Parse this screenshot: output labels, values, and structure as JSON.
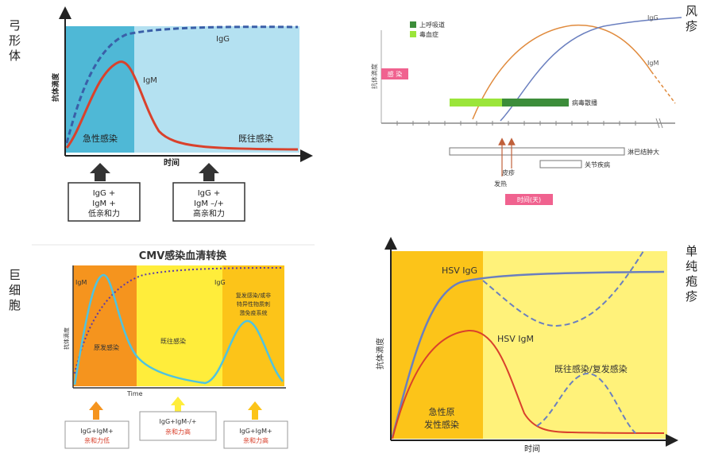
{
  "side_labels": {
    "toxo": "弓形体",
    "rubella": "风疹",
    "cmv": "巨细胞",
    "hsv": "单纯疱疹"
  },
  "toxo": {
    "y_axis": "抗体滴度",
    "x_axis": "时间",
    "igg": "IgG",
    "igm": "IgM",
    "acute": "急性感染",
    "past": "既往感染",
    "box1": [
      "IgG +",
      "IgM +",
      "低亲和力"
    ],
    "box2": [
      "IgG +",
      "IgM –/+",
      "高亲和力"
    ]
  },
  "rubella": {
    "y_axis": "抗体滴度",
    "legend_upper": "上呼吸道",
    "legend_viremia": "毒血症",
    "infection": "感 染",
    "igg": "IgG",
    "igm": "IgM",
    "shedding": "病毒散播",
    "lymph": "淋巴结肿大",
    "joint": "关节疾病",
    "rash": "皮疹",
    "fever": "发热",
    "time_days": "时间(天)"
  },
  "cmv": {
    "title": "CMV感染血清转换",
    "y_axis": "抗体滴度",
    "igm": "IgM",
    "igg": "IgG",
    "primary": "原发感染",
    "past": "既往感染",
    "recur": [
      "复发感染/或非",
      "特异性物质刺",
      "激免疫系统"
    ],
    "time": "Time",
    "box1": [
      "IgG+IgM+",
      "亲和力低"
    ],
    "box2": [
      "IgG+IgM-/+",
      "亲和力高"
    ],
    "box3": [
      "IgG+IgM+",
      "亲和力高"
    ]
  },
  "hsv": {
    "y_axis": "抗体滴度",
    "x_axis": "时间",
    "igg": "HSV IgG",
    "igm": "HSV IgM",
    "acute": [
      "急性原",
      "发性感染"
    ],
    "past": "既往感染/复发感染"
  },
  "colors": {
    "toxo_acute": "#4fb8d6",
    "toxo_past": "#b4e1f1",
    "red_curve": "#d9412c",
    "blue_dash": "#3a5fa8",
    "cmv_orange": "#f5941e",
    "cmv_yellow": "#ffed3b",
    "hsv_dark": "#fcc419",
    "hsv_light": "#fff27a",
    "rubella_dark_green": "#3c8d3a",
    "rubella_light_green": "#9be53a",
    "rubella_pink": "#f0628f"
  }
}
